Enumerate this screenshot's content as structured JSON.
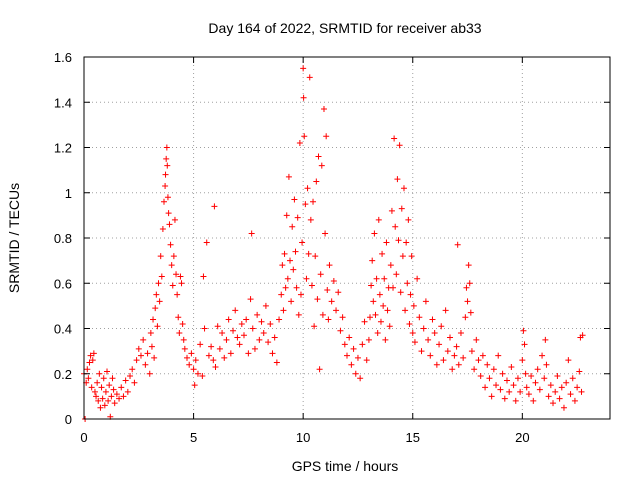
{
  "chart_data": {
    "type": "scatter",
    "title": "Day 164 of 2022, SRMTID for receiver ab33",
    "xlabel": "GPS time / hours",
    "ylabel": "SRMTID / TECUs",
    "xlim": [
      0,
      24
    ],
    "ylim": [
      0,
      1.6
    ],
    "x_ticks": [
      0,
      5,
      10,
      15,
      20
    ],
    "x_tick_labels": [
      "0",
      "5",
      "10",
      "15",
      "20"
    ],
    "y_ticks": [
      0,
      0.2,
      0.4,
      0.6,
      0.8,
      1.0,
      1.2,
      1.4,
      1.6
    ],
    "y_tick_labels": [
      "0",
      "0.2",
      "0.4",
      "0.6",
      "0.8",
      "1",
      "1.2",
      "1.4",
      "1.6"
    ],
    "grid": true,
    "marker": "+",
    "series": [
      {
        "name": "SRMTID",
        "color": "#ff0000",
        "points": [
          [
            0.0,
            0.2
          ],
          [
            0.05,
            0.0
          ],
          [
            0.1,
            0.16
          ],
          [
            0.15,
            0.22
          ],
          [
            0.2,
            0.18
          ],
          [
            0.25,
            0.25
          ],
          [
            0.3,
            0.28
          ],
          [
            0.35,
            0.14
          ],
          [
            0.4,
            0.26
          ],
          [
            0.45,
            0.29
          ],
          [
            0.5,
            0.12
          ],
          [
            0.55,
            0.1
          ],
          [
            0.6,
            0.16
          ],
          [
            0.65,
            0.08
          ],
          [
            0.7,
            0.2
          ],
          [
            0.75,
            0.05
          ],
          [
            0.8,
            0.14
          ],
          [
            0.85,
            0.09
          ],
          [
            0.9,
            0.18
          ],
          [
            0.95,
            0.06
          ],
          [
            1.0,
            0.12
          ],
          [
            1.05,
            0.21
          ],
          [
            1.1,
            0.08
          ],
          [
            1.15,
            0.15
          ],
          [
            1.2,
            0.01
          ],
          [
            1.25,
            0.1
          ],
          [
            1.3,
            0.18
          ],
          [
            1.35,
            0.13
          ],
          [
            1.4,
            0.07
          ],
          [
            1.5,
            0.11
          ],
          [
            1.6,
            0.09
          ],
          [
            1.7,
            0.14
          ],
          [
            1.8,
            0.1
          ],
          [
            1.9,
            0.17
          ],
          [
            2.0,
            0.12
          ],
          [
            2.1,
            0.19
          ],
          [
            2.2,
            0.22
          ],
          [
            2.3,
            0.16
          ],
          [
            2.4,
            0.26
          ],
          [
            2.5,
            0.31
          ],
          [
            2.6,
            0.28
          ],
          [
            2.7,
            0.35
          ],
          [
            2.8,
            0.24
          ],
          [
            2.9,
            0.29
          ],
          [
            3.0,
            0.2
          ],
          [
            3.05,
            0.38
          ],
          [
            3.1,
            0.32
          ],
          [
            3.15,
            0.44
          ],
          [
            3.2,
            0.27
          ],
          [
            3.25,
            0.49
          ],
          [
            3.3,
            0.55
          ],
          [
            3.35,
            0.41
          ],
          [
            3.4,
            0.6
          ],
          [
            3.45,
            0.52
          ],
          [
            3.5,
            0.72
          ],
          [
            3.55,
            0.63
          ],
          [
            3.6,
            0.84
          ],
          [
            3.65,
            0.96
          ],
          [
            3.7,
            1.03
          ],
          [
            3.72,
            1.08
          ],
          [
            3.75,
            1.15
          ],
          [
            3.78,
            1.2
          ],
          [
            3.8,
            1.12
          ],
          [
            3.83,
            0.98
          ],
          [
            3.86,
            0.91
          ],
          [
            3.9,
            0.86
          ],
          [
            3.95,
            0.77
          ],
          [
            4.0,
            0.68
          ],
          [
            4.05,
            0.59
          ],
          [
            4.1,
            0.72
          ],
          [
            4.15,
            0.88
          ],
          [
            4.2,
            0.64
          ],
          [
            4.25,
            0.55
          ],
          [
            4.3,
            0.45
          ],
          [
            4.35,
            0.38
          ],
          [
            4.4,
            0.63
          ],
          [
            4.45,
            0.6
          ],
          [
            4.5,
            0.42
          ],
          [
            4.55,
            0.35
          ],
          [
            4.6,
            0.31
          ],
          [
            4.7,
            0.27
          ],
          [
            4.8,
            0.24
          ],
          [
            4.9,
            0.29
          ],
          [
            5.0,
            0.22
          ],
          [
            5.05,
            0.15
          ],
          [
            5.1,
            0.26
          ],
          [
            5.2,
            0.2
          ],
          [
            5.3,
            0.33
          ],
          [
            5.4,
            0.19
          ],
          [
            5.45,
            0.63
          ],
          [
            5.5,
            0.4
          ],
          [
            5.6,
            0.78
          ],
          [
            5.7,
            0.28
          ],
          [
            5.8,
            0.32
          ],
          [
            5.9,
            0.26
          ],
          [
            5.95,
            0.94
          ],
          [
            6.0,
            0.23
          ],
          [
            6.1,
            0.41
          ],
          [
            6.2,
            0.31
          ],
          [
            6.3,
            0.38
          ],
          [
            6.4,
            0.27
          ],
          [
            6.5,
            0.35
          ],
          [
            6.6,
            0.44
          ],
          [
            6.7,
            0.29
          ],
          [
            6.8,
            0.39
          ],
          [
            6.9,
            0.48
          ],
          [
            7.0,
            0.36
          ],
          [
            7.1,
            0.33
          ],
          [
            7.2,
            0.42
          ],
          [
            7.3,
            0.37
          ],
          [
            7.4,
            0.44
          ],
          [
            7.5,
            0.29
          ],
          [
            7.6,
            0.53
          ],
          [
            7.65,
            0.82
          ],
          [
            7.7,
            0.4
          ],
          [
            7.8,
            0.31
          ],
          [
            7.9,
            0.46
          ],
          [
            8.0,
            0.35
          ],
          [
            8.1,
            0.43
          ],
          [
            8.2,
            0.38
          ],
          [
            8.3,
            0.5
          ],
          [
            8.4,
            0.34
          ],
          [
            8.5,
            0.42
          ],
          [
            8.6,
            0.29
          ],
          [
            8.7,
            0.36
          ],
          [
            8.8,
            0.25
          ],
          [
            8.9,
            0.44
          ],
          [
            9.0,
            0.55
          ],
          [
            9.05,
            0.68
          ],
          [
            9.1,
            0.48
          ],
          [
            9.15,
            0.73
          ],
          [
            9.2,
            0.58
          ],
          [
            9.25,
            0.9
          ],
          [
            9.3,
            0.62
          ],
          [
            9.35,
            1.07
          ],
          [
            9.4,
            0.7
          ],
          [
            9.45,
            0.52
          ],
          [
            9.5,
            0.85
          ],
          [
            9.55,
            0.66
          ],
          [
            9.6,
            0.97
          ],
          [
            9.65,
            0.74
          ],
          [
            9.7,
            0.58
          ],
          [
            9.75,
            0.89
          ],
          [
            9.8,
            0.46
          ],
          [
            9.85,
            1.22
          ],
          [
            9.9,
            0.55
          ],
          [
            9.95,
            0.78
          ],
          [
            10.0,
            1.55
          ],
          [
            10.02,
            1.42
          ],
          [
            10.05,
            1.25
          ],
          [
            10.1,
            0.95
          ],
          [
            10.15,
            0.62
          ],
          [
            10.2,
            1.02
          ],
          [
            10.25,
            0.73
          ],
          [
            10.3,
            1.51
          ],
          [
            10.35,
            0.88
          ],
          [
            10.4,
            0.59
          ],
          [
            10.45,
            0.96
          ],
          [
            10.5,
            0.41
          ],
          [
            10.55,
            0.72
          ],
          [
            10.6,
            1.05
          ],
          [
            10.65,
            0.53
          ],
          [
            10.7,
            1.16
          ],
          [
            10.75,
            0.22
          ],
          [
            10.8,
            0.64
          ],
          [
            10.85,
            1.12
          ],
          [
            10.9,
            0.46
          ],
          [
            10.95,
            1.37
          ],
          [
            11.0,
            0.82
          ],
          [
            11.05,
            1.25
          ],
          [
            11.1,
            0.57
          ],
          [
            11.15,
            0.44
          ],
          [
            11.2,
            0.68
          ],
          [
            11.3,
            0.52
          ],
          [
            11.4,
            0.61
          ],
          [
            11.5,
            0.48
          ],
          [
            11.6,
            0.56
          ],
          [
            11.7,
            0.39
          ],
          [
            11.8,
            0.45
          ],
          [
            11.9,
            0.33
          ],
          [
            12.0,
            0.28
          ],
          [
            12.1,
            0.36
          ],
          [
            12.2,
            0.24
          ],
          [
            12.3,
            0.31
          ],
          [
            12.4,
            0.2
          ],
          [
            12.5,
            0.27
          ],
          [
            12.6,
            0.18
          ],
          [
            12.7,
            0.33
          ],
          [
            12.8,
            0.43
          ],
          [
            12.9,
            0.26
          ],
          [
            13.0,
            0.35
          ],
          [
            13.05,
            0.45
          ],
          [
            13.1,
            0.59
          ],
          [
            13.15,
            0.7
          ],
          [
            13.2,
            0.52
          ],
          [
            13.25,
            0.82
          ],
          [
            13.3,
            0.46
          ],
          [
            13.35,
            0.62
          ],
          [
            13.4,
            0.38
          ],
          [
            13.45,
            0.88
          ],
          [
            13.5,
            0.55
          ],
          [
            13.55,
            0.43
          ],
          [
            13.6,
            0.73
          ],
          [
            13.65,
            0.5
          ],
          [
            13.7,
            0.62
          ],
          [
            13.75,
            0.35
          ],
          [
            13.8,
            0.78
          ],
          [
            13.85,
            0.48
          ],
          [
            13.9,
            0.58
          ],
          [
            13.95,
            0.41
          ],
          [
            14.0,
            0.68
          ],
          [
            14.05,
            0.92
          ],
          [
            14.1,
            0.58
          ],
          [
            14.15,
            1.24
          ],
          [
            14.2,
            0.85
          ],
          [
            14.25,
            0.64
          ],
          [
            14.3,
            1.06
          ],
          [
            14.35,
            0.79
          ],
          [
            14.4,
            1.21
          ],
          [
            14.45,
            0.56
          ],
          [
            14.5,
            0.93
          ],
          [
            14.55,
            0.72
          ],
          [
            14.6,
            1.02
          ],
          [
            14.65,
            0.48
          ],
          [
            14.7,
            0.78
          ],
          [
            14.75,
            0.6
          ],
          [
            14.8,
            0.88
          ],
          [
            14.85,
            0.42
          ],
          [
            14.9,
            0.55
          ],
          [
            14.95,
            0.72
          ],
          [
            15.0,
            0.38
          ],
          [
            15.05,
            0.5
          ],
          [
            15.1,
            0.34
          ],
          [
            15.2,
            0.62
          ],
          [
            15.3,
            0.45
          ],
          [
            15.4,
            0.3
          ],
          [
            15.5,
            0.4
          ],
          [
            15.6,
            0.52
          ],
          [
            15.7,
            0.35
          ],
          [
            15.8,
            0.28
          ],
          [
            15.9,
            0.44
          ],
          [
            16.0,
            0.38
          ],
          [
            16.1,
            0.24
          ],
          [
            16.2,
            0.33
          ],
          [
            16.3,
            0.41
          ],
          [
            16.4,
            0.26
          ],
          [
            16.5,
            0.48
          ],
          [
            16.6,
            0.3
          ],
          [
            16.7,
            0.36
          ],
          [
            16.8,
            0.22
          ],
          [
            16.9,
            0.28
          ],
          [
            17.0,
            0.32
          ],
          [
            17.05,
            0.77
          ],
          [
            17.1,
            0.24
          ],
          [
            17.2,
            0.38
          ],
          [
            17.3,
            0.27
          ],
          [
            17.4,
            0.45
          ],
          [
            17.45,
            0.58
          ],
          [
            17.5,
            0.52
          ],
          [
            17.55,
            0.68
          ],
          [
            17.6,
            0.6
          ],
          [
            17.65,
            0.47
          ],
          [
            17.7,
            0.3
          ],
          [
            17.8,
            0.22
          ],
          [
            17.9,
            0.35
          ],
          [
            18.0,
            0.26
          ],
          [
            18.1,
            0.19
          ],
          [
            18.2,
            0.28
          ],
          [
            18.3,
            0.14
          ],
          [
            18.4,
            0.24
          ],
          [
            18.5,
            0.18
          ],
          [
            18.6,
            0.1
          ],
          [
            18.7,
            0.22
          ],
          [
            18.8,
            0.15
          ],
          [
            18.9,
            0.28
          ],
          [
            19.0,
            0.13
          ],
          [
            19.1,
            0.2
          ],
          [
            19.2,
            0.09
          ],
          [
            19.3,
            0.17
          ],
          [
            19.4,
            0.12
          ],
          [
            19.5,
            0.23
          ],
          [
            19.6,
            0.15
          ],
          [
            19.7,
            0.08
          ],
          [
            19.8,
            0.18
          ],
          [
            19.9,
            0.12
          ],
          [
            20.0,
            0.26
          ],
          [
            20.05,
            0.39
          ],
          [
            20.1,
            0.33
          ],
          [
            20.15,
            0.2
          ],
          [
            20.2,
            0.14
          ],
          [
            20.3,
            0.11
          ],
          [
            20.4,
            0.19
          ],
          [
            20.5,
            0.08
          ],
          [
            20.6,
            0.16
          ],
          [
            20.7,
            0.22
          ],
          [
            20.8,
            0.13
          ],
          [
            20.9,
            0.28
          ],
          [
            21.0,
            0.18
          ],
          [
            21.05,
            0.35
          ],
          [
            21.1,
            0.24
          ],
          [
            21.2,
            0.1
          ],
          [
            21.3,
            0.15
          ],
          [
            21.4,
            0.07
          ],
          [
            21.5,
            0.12
          ],
          [
            21.6,
            0.19
          ],
          [
            21.7,
            0.09
          ],
          [
            21.8,
            0.14
          ],
          [
            21.9,
            0.05
          ],
          [
            22.0,
            0.16
          ],
          [
            22.1,
            0.26
          ],
          [
            22.2,
            0.11
          ],
          [
            22.3,
            0.18
          ],
          [
            22.4,
            0.08
          ],
          [
            22.5,
            0.14
          ],
          [
            22.6,
            0.21
          ],
          [
            22.65,
            0.36
          ],
          [
            22.7,
            0.12
          ],
          [
            22.75,
            0.37
          ]
        ]
      }
    ]
  }
}
